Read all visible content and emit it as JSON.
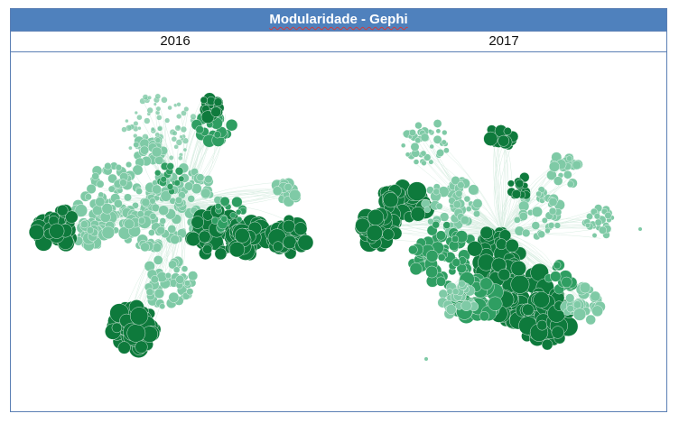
{
  "title": "Modularidade - Gephi",
  "columns": [
    "2016",
    "2017"
  ],
  "colors": {
    "header_bg": "#4f81bd",
    "border": "#5b7fb4",
    "dark_green": "#0e7a3c",
    "mid_green": "#2f9e62",
    "light_green": "#7fcaa6",
    "edge": "#c9e6d6"
  }
}
